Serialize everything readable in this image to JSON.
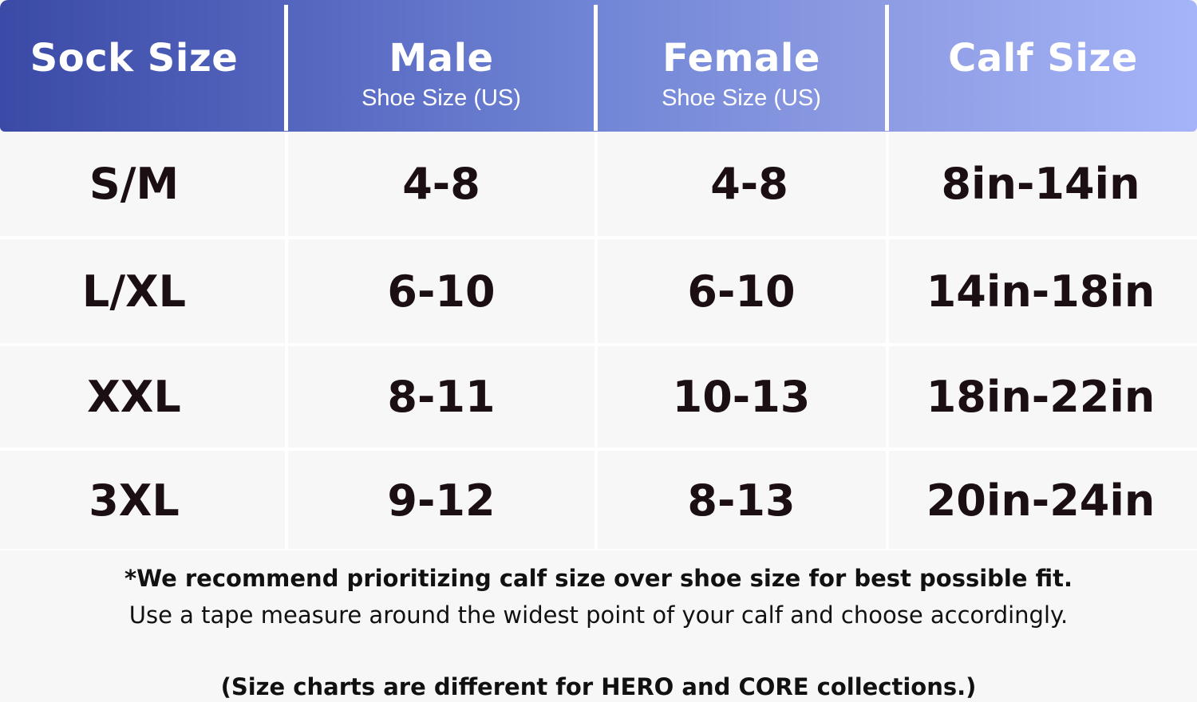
{
  "header": {
    "columns": [
      {
        "title": "Sock Size",
        "subtitle": ""
      },
      {
        "title": "Male",
        "subtitle": "Shoe Size (US)"
      },
      {
        "title": "Female",
        "subtitle": "Shoe Size (US)"
      },
      {
        "title": "Calf Size",
        "subtitle": ""
      }
    ]
  },
  "rows": [
    {
      "sock_size": "S/M",
      "male": "4-8",
      "female": "4-8",
      "calf": "8in-14in"
    },
    {
      "sock_size": "L/XL",
      "male": "6-10",
      "female": "6-10",
      "calf": "14in-18in"
    },
    {
      "sock_size": "XXL",
      "male": "8-11",
      "female": "10-13",
      "calf": "18in-22in"
    },
    {
      "sock_size": "3XL",
      "male": "9-12",
      "female": "8-13",
      "calf": "20in-24in"
    }
  ],
  "footer": {
    "note": "*We recommend prioritizing calf size over shoe size for best possible fit.",
    "instruction": "Use a tape measure around the widest point of your calf and choose accordingly.",
    "disclaimer": "(Size charts are different for HERO and CORE collections.)"
  },
  "colors": {
    "header_gradient_start": "#3a4aa6",
    "header_gradient_end": "#a5b4f8",
    "cell_background": "#f7f7f7",
    "text": "#1b0f14"
  }
}
